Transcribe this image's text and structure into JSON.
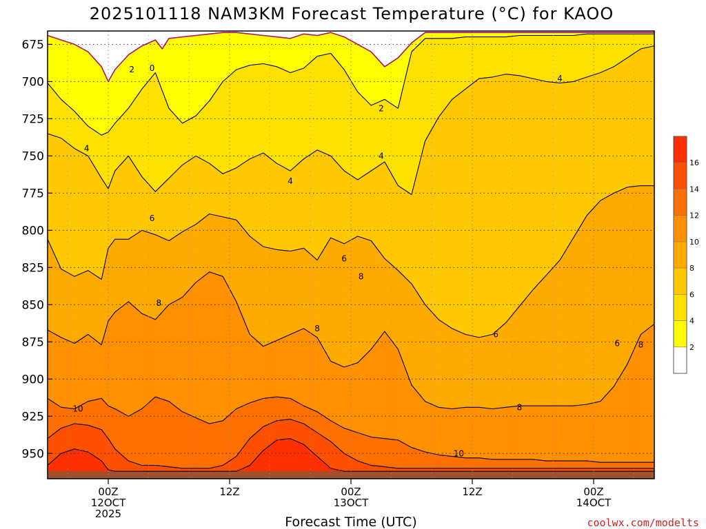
{
  "chart_data": {
    "type": "contour",
    "title": "2025101118 NAM3KM Forecast Temperature (°C) for KAOO",
    "xlabel": "Forecast Time (UTC)",
    "ylabel": "",
    "credit": "coolwx.com/modelts",
    "y_axis": {
      "inverted": true,
      "range": [
        666,
        967
      ],
      "ticks": [
        675,
        700,
        725,
        750,
        775,
        800,
        825,
        850,
        875,
        900,
        925,
        950
      ]
    },
    "x_axis": {
      "range_hours": [
        -9,
        81
      ],
      "ticks": [
        {
          "hour": 0,
          "lines": [
            "00Z",
            "12OCT",
            "2025"
          ]
        },
        {
          "hour": 18,
          "lines": [
            "12Z"
          ]
        },
        {
          "hour": 36,
          "lines": [
            "00Z",
            "13OCT"
          ]
        },
        {
          "hour": 54,
          "lines": [
            "12Z"
          ]
        },
        {
          "hour": 72,
          "lines": [
            "00Z",
            "14OCT"
          ]
        }
      ]
    },
    "grid": true,
    "colorbar": {
      "labels": [
        "2",
        "4",
        "6",
        "8",
        "10",
        "12",
        "14",
        "16"
      ],
      "levels": [
        2,
        4,
        6,
        8,
        10,
        12,
        14,
        16
      ],
      "colors": [
        "#ffffff",
        "#ffff00",
        "#ffe100",
        "#ffc800",
        "#ffaa00",
        "#ff9000",
        "#ff7000",
        "#ff5000",
        "#ff3000"
      ]
    },
    "ground_color": "#a0522d",
    "contour_labels": [
      {
        "text": "0",
        "hour": 6.5,
        "p": 691
      },
      {
        "text": "2",
        "hour": 3.5,
        "p": 692
      },
      {
        "text": "2",
        "hour": 40.5,
        "p": 718
      },
      {
        "text": "4",
        "hour": -3.2,
        "p": 745
      },
      {
        "text": "4",
        "hour": 27,
        "p": 767
      },
      {
        "text": "4",
        "hour": 40.5,
        "p": 750
      },
      {
        "text": "4",
        "hour": 67,
        "p": 698
      },
      {
        "text": "6",
        "hour": 6.5,
        "p": 792
      },
      {
        "text": "6",
        "hour": 35,
        "p": 819
      },
      {
        "text": "6",
        "hour": 57.5,
        "p": 870
      },
      {
        "text": "6",
        "hour": 75.5,
        "p": 876
      },
      {
        "text": "8",
        "hour": 7.5,
        "p": 849
      },
      {
        "text": "8",
        "hour": 31,
        "p": 866
      },
      {
        "text": "8",
        "hour": 37.5,
        "p": 831
      },
      {
        "text": "8",
        "hour": 61,
        "p": 919
      },
      {
        "text": "8",
        "hour": 79,
        "p": 877
      },
      {
        "text": "10",
        "hour": -4.5,
        "p": 920
      },
      {
        "text": "10",
        "hour": 52,
        "p": 950
      }
    ],
    "series": [
      {
        "level": 0,
        "x": [
          -9,
          -7,
          -5,
          -3,
          -1,
          0,
          1,
          3,
          5,
          7,
          8,
          9,
          11,
          13,
          15,
          17,
          19,
          21,
          23,
          25,
          27,
          29,
          31,
          33,
          35,
          37,
          39,
          41,
          43,
          45,
          47,
          49,
          51,
          53,
          55,
          57,
          59,
          61,
          63,
          65,
          67,
          69,
          71,
          73,
          75,
          77,
          79,
          81
        ],
        "y": [
          669,
          672,
          675,
          680,
          690,
          700,
          692,
          682,
          676,
          672,
          678,
          671,
          670,
          669,
          668,
          667,
          667,
          668,
          669,
          670,
          671,
          668,
          669,
          667,
          670,
          675,
          680,
          690,
          684,
          674,
          667,
          667,
          667,
          667,
          667,
          667,
          667,
          667,
          667,
          667,
          667,
          667,
          667,
          667,
          667,
          667,
          667,
          667
        ]
      },
      {
        "level": 2,
        "x": [
          -9,
          -7,
          -5,
          -3,
          -1,
          0,
          1,
          3,
          5,
          7,
          9,
          11,
          13,
          15,
          17,
          19,
          21,
          23,
          25,
          27,
          29,
          31,
          33,
          35,
          37,
          39,
          41,
          43,
          45,
          47,
          49,
          51,
          53,
          55,
          57,
          59,
          61,
          63,
          65,
          67,
          69,
          71,
          73,
          75,
          77,
          79,
          81
        ],
        "y": [
          701,
          712,
          720,
          730,
          736,
          734,
          728,
          718,
          705,
          694,
          718,
          728,
          723,
          713,
          700,
          692,
          689,
          688,
          690,
          694,
          691,
          683,
          681,
          692,
          707,
          716,
          712,
          718,
          680,
          671,
          671,
          671,
          670,
          670,
          670,
          670,
          669,
          669,
          669,
          669,
          669,
          668,
          668,
          668,
          668,
          668,
          668
        ]
      },
      {
        "level": 4,
        "x": [
          -9,
          -7,
          -5,
          -3,
          -1,
          0,
          1,
          3,
          5,
          7,
          9,
          11,
          13,
          15,
          17,
          19,
          21,
          23,
          25,
          27,
          29,
          31,
          33,
          35,
          37,
          39,
          41,
          43,
          45,
          47,
          49,
          51,
          53,
          55,
          57,
          59,
          61,
          63,
          65,
          67,
          69,
          71,
          73,
          75,
          77,
          79,
          81
        ],
        "y": [
          735,
          738,
          745,
          750,
          765,
          772,
          760,
          750,
          764,
          774,
          765,
          756,
          750,
          755,
          762,
          758,
          752,
          748,
          755,
          760,
          752,
          746,
          750,
          760,
          766,
          760,
          754,
          770,
          776,
          740,
          724,
          712,
          705,
          698,
          697,
          695,
          696,
          698,
          700,
          701,
          700,
          697,
          694,
          690,
          684,
          678,
          676
        ]
      },
      {
        "level": 6,
        "x": [
          -9,
          -7,
          -5,
          -3,
          -1,
          0,
          1,
          3,
          5,
          7,
          9,
          11,
          13,
          15,
          17,
          19,
          21,
          23,
          25,
          27,
          29,
          31,
          33,
          35,
          37,
          39,
          41,
          43,
          45,
          47,
          49,
          51,
          53,
          55,
          57,
          59,
          61,
          63,
          65,
          67,
          69,
          71,
          73,
          75,
          77,
          79,
          81
        ],
        "y": [
          806,
          826,
          831,
          827,
          833,
          812,
          806,
          806,
          800,
          803,
          807,
          801,
          796,
          789,
          791,
          793,
          804,
          811,
          813,
          814,
          812,
          820,
          805,
          809,
          804,
          807,
          819,
          827,
          836,
          850,
          860,
          866,
          870,
          872,
          870,
          862,
          851,
          840,
          830,
          820,
          805,
          790,
          780,
          775,
          771,
          770,
          770
        ]
      },
      {
        "level": 8,
        "x": [
          -9,
          -7,
          -5,
          -3,
          -1,
          0,
          1,
          3,
          5,
          7,
          9,
          11,
          13,
          15,
          17,
          19,
          21,
          23,
          25,
          27,
          29,
          31,
          33,
          35,
          37,
          39,
          41,
          43,
          45,
          47,
          49,
          51,
          53,
          55,
          57,
          59,
          61,
          63,
          65,
          67,
          69,
          71,
          73,
          75,
          77,
          79,
          81
        ],
        "y": [
          867,
          872,
          876,
          870,
          877,
          861,
          855,
          848,
          856,
          860,
          850,
          845,
          835,
          828,
          831,
          848,
          870,
          878,
          874,
          870,
          866,
          872,
          888,
          892,
          889,
          880,
          868,
          880,
          904,
          915,
          919,
          920,
          919,
          919,
          920,
          919,
          918,
          918,
          918,
          918,
          918,
          917,
          915,
          905,
          890,
          870,
          863
        ]
      },
      {
        "level": 10,
        "x": [
          -9,
          -7,
          -5,
          -3,
          -1,
          0,
          1,
          3,
          5,
          7,
          9,
          11,
          13,
          15,
          17,
          19,
          21,
          23,
          25,
          27,
          29,
          31,
          33,
          35,
          37,
          39,
          41,
          43,
          45,
          47,
          49,
          51,
          53,
          55,
          57,
          59,
          61,
          63,
          65,
          67,
          69,
          71,
          73,
          75,
          77,
          79,
          81
        ],
        "y": [
          913,
          919,
          920,
          915,
          913,
          918,
          920,
          925,
          920,
          912,
          915,
          922,
          926,
          930,
          928,
          920,
          916,
          913,
          912,
          913,
          918,
          922,
          928,
          933,
          936,
          939,
          940,
          941,
          946,
          949,
          951,
          952,
          953,
          953,
          954,
          954,
          954,
          954,
          955,
          955,
          955,
          955,
          956,
          956,
          956,
          956,
          956
        ]
      },
      {
        "level": 12,
        "x": [
          -9,
          -7,
          -5,
          -3,
          -1,
          0,
          1,
          3,
          5,
          7,
          9,
          11,
          13,
          15,
          17,
          19,
          21,
          23,
          25,
          27,
          29,
          31,
          33,
          35,
          37,
          39,
          41,
          43,
          45,
          47,
          49,
          51,
          53,
          55,
          57,
          59,
          61,
          63,
          65,
          67,
          69,
          71,
          73,
          75,
          77,
          79,
          81
        ],
        "y": [
          940,
          933,
          930,
          931,
          934,
          940,
          947,
          955,
          958,
          958,
          959,
          960,
          960,
          960,
          958,
          952,
          940,
          932,
          928,
          927,
          930,
          936,
          942,
          950,
          955,
          958,
          959,
          960,
          960,
          960,
          960,
          960,
          960,
          960,
          960,
          960,
          960,
          960,
          960,
          960,
          960,
          960,
          960,
          960,
          960,
          960,
          960
        ]
      },
      {
        "level": 14,
        "x": [
          -9,
          -7,
          -5,
          -3,
          -1,
          0,
          1,
          3,
          5,
          7,
          9,
          11,
          13,
          15,
          17,
          19,
          21,
          23,
          25,
          27,
          29,
          31,
          33,
          35,
          37,
          39,
          41,
          43,
          45,
          47,
          49,
          51,
          53,
          55,
          57,
          59,
          61,
          63,
          65,
          67,
          69,
          71,
          73,
          75,
          77,
          79,
          81
        ],
        "y": [
          958,
          950,
          947,
          949,
          955,
          961,
          962,
          962,
          962,
          962,
          962,
          962,
          962,
          962,
          962,
          962,
          958,
          948,
          941,
          940,
          944,
          952,
          960,
          962,
          962,
          962,
          962,
          962,
          962,
          962,
          962,
          962,
          962,
          962,
          962,
          962,
          962,
          962,
          962,
          962,
          962,
          962,
          962,
          962,
          962,
          962,
          962
        ]
      }
    ]
  }
}
